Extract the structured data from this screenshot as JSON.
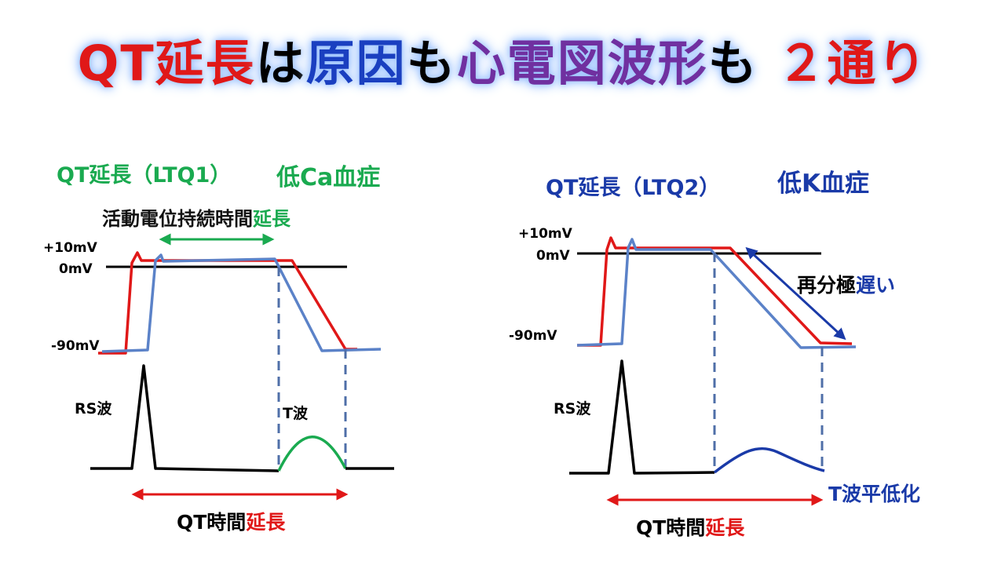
{
  "title": {
    "segments": [
      "QT延長",
      "は",
      "原因",
      "も",
      "心電図波形",
      "も",
      "２通り"
    ]
  },
  "left": {
    "heading": "QT延長（LTQ1）",
    "condition": "低Ca血症",
    "duration_label": {
      "text": "活動電位持続時間",
      "emphasis": "延長"
    },
    "axis_labels": [
      "+10mV",
      "0mV",
      "-90mV"
    ],
    "rs_label": "RS波",
    "t_label": "T波",
    "qt_label": {
      "text": "QT時間",
      "emphasis": "延長"
    }
  },
  "right": {
    "heading": "QT延長（LTQ2）",
    "condition": "低K血症",
    "axis_labels": [
      "+10mV",
      "0mV",
      "-90mV"
    ],
    "repol_label": {
      "text": "再分極",
      "emphasis": "遅い"
    },
    "rs_label": "RS波",
    "t_label": "T波平低化",
    "qt_label": {
      "text": "QT時間",
      "emphasis": "延長"
    }
  }
}
